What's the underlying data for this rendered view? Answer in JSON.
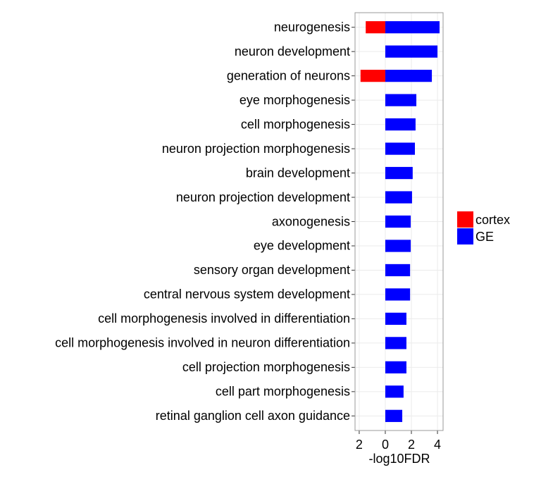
{
  "chart_data": {
    "type": "bar",
    "orientation": "horizontal",
    "x_label": "-log10FDR",
    "categories": [
      "neurogenesis",
      "neuron development",
      "generation of neurons",
      "eye morphogenesis",
      "cell morphogenesis",
      "neuron projection morphogenesis",
      "brain development",
      "neuron projection development",
      "axonogenesis",
      "eye development",
      "sensory organ development",
      "central nervous system development",
      "cell morphogenesis involved in differentiation",
      "cell morphogenesis involved in neuron differentiation",
      "cell projection morphogenesis",
      "cell part morphogenesis",
      "retinal ganglion cell axon guidance"
    ],
    "series": [
      {
        "name": "cortex",
        "color": "#ff0000",
        "values": [
          -1.5,
          null,
          -1.9,
          null,
          null,
          null,
          null,
          null,
          null,
          null,
          null,
          null,
          null,
          null,
          null,
          null,
          null
        ]
      },
      {
        "name": "GE",
        "color": "#0000ff",
        "values": [
          4.16,
          4.0,
          3.57,
          2.38,
          2.32,
          2.27,
          2.1,
          2.05,
          1.95,
          1.95,
          1.9,
          1.9,
          1.62,
          1.62,
          1.62,
          1.4,
          1.3
        ]
      }
    ],
    "xlim": [
      -2.32,
      4.43
    ],
    "xticks": [
      {
        "value": -2,
        "label": "2"
      },
      0,
      2,
      4
    ],
    "grid": true
  }
}
